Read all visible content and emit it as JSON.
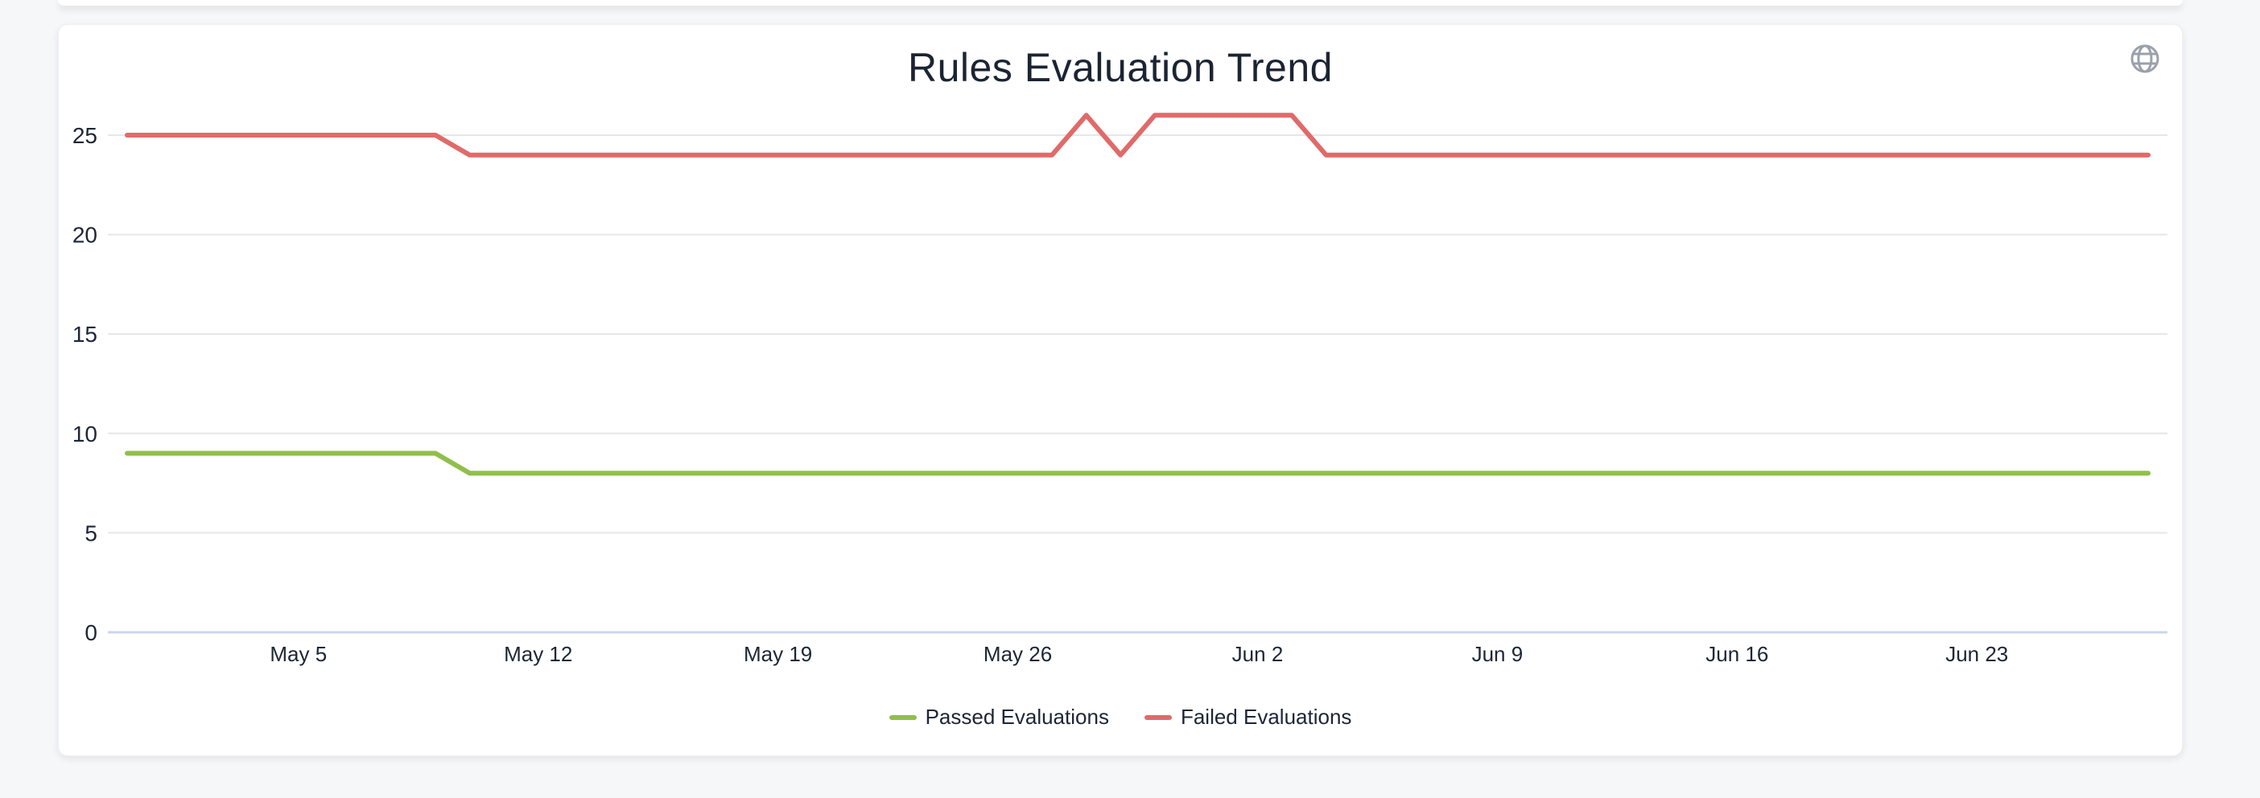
{
  "page": {
    "background_color": "#f6f7f9",
    "card_background_color": "#ffffff"
  },
  "header": {
    "globe_icon": "globe-icon",
    "globe_icon_color": "#9aa1ab"
  },
  "chart_data": {
    "type": "line",
    "title": "Rules Evaluation Trend",
    "title_color": "#1b2432",
    "grid": "horizontal",
    "grid_color": "#e6e6e6",
    "axis_line_color": "#ccd6eb",
    "label_color": "#1c2636",
    "legend_position": "bottom-center",
    "ylim": [
      0,
      27
    ],
    "y_ticks": [
      0,
      5,
      10,
      15,
      20,
      25
    ],
    "x_tick_labels": [
      "May 5",
      "May 12",
      "May 19",
      "May 26",
      "Jun 2",
      "Jun 9",
      "Jun 16",
      "Jun 23"
    ],
    "x_tick_indices": [
      5,
      12,
      19,
      26,
      33,
      40,
      47,
      54
    ],
    "x": [
      "Apr 30",
      "May 1",
      "May 2",
      "May 3",
      "May 4",
      "May 5",
      "May 6",
      "May 7",
      "May 8",
      "May 9",
      "May 10",
      "May 11",
      "May 12",
      "May 13",
      "May 14",
      "May 15",
      "May 16",
      "May 17",
      "May 18",
      "May 19",
      "May 20",
      "May 21",
      "May 22",
      "May 23",
      "May 24",
      "May 25",
      "May 26",
      "May 27",
      "May 28",
      "May 29",
      "May 30",
      "May 31",
      "Jun 1",
      "Jun 2",
      "Jun 3",
      "Jun 4",
      "Jun 5",
      "Jun 6",
      "Jun 7",
      "Jun 8",
      "Jun 9",
      "Jun 10",
      "Jun 11",
      "Jun 12",
      "Jun 13",
      "Jun 14",
      "Jun 15",
      "Jun 16",
      "Jun 17",
      "Jun 18",
      "Jun 19",
      "Jun 20",
      "Jun 21",
      "Jun 22",
      "Jun 23",
      "Jun 24",
      "Jun 25",
      "Jun 26",
      "Jun 27",
      "Jun 28"
    ],
    "series": [
      {
        "name": "Passed Evaluations",
        "color": "#90bf4a",
        "values": [
          9,
          9,
          9,
          9,
          9,
          9,
          9,
          9,
          9,
          9,
          8,
          8,
          8,
          8,
          8,
          8,
          8,
          8,
          8,
          8,
          8,
          8,
          8,
          8,
          8,
          8,
          8,
          8,
          8,
          8,
          8,
          8,
          8,
          8,
          8,
          8,
          8,
          8,
          8,
          8,
          8,
          8,
          8,
          8,
          8,
          8,
          8,
          8,
          8,
          8,
          8,
          8,
          8,
          8,
          8,
          8,
          8,
          8,
          8,
          8
        ]
      },
      {
        "name": "Failed Evaluations",
        "color": "#e06a6a",
        "values": [
          25,
          25,
          25,
          25,
          25,
          25,
          25,
          25,
          25,
          25,
          24,
          24,
          24,
          24,
          24,
          24,
          24,
          24,
          24,
          24,
          24,
          24,
          24,
          24,
          24,
          24,
          24,
          24,
          26,
          24,
          26,
          26,
          26,
          26,
          26,
          24,
          24,
          24,
          24,
          24,
          24,
          24,
          24,
          24,
          24,
          24,
          24,
          24,
          24,
          24,
          24,
          24,
          24,
          24,
          24,
          24,
          24,
          24,
          24,
          24
        ]
      }
    ]
  }
}
